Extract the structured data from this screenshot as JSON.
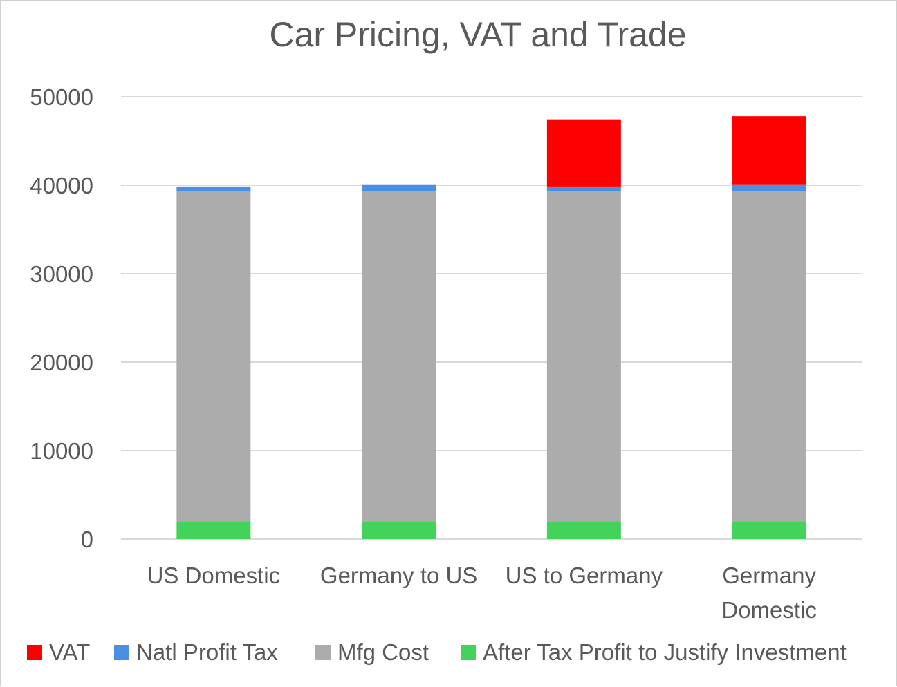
{
  "chart_data": {
    "type": "bar",
    "stacked": true,
    "title": "Car Pricing, VAT and Trade",
    "xlabel": "",
    "ylabel": "",
    "ylim": [
      0,
      50000
    ],
    "yticks": [
      "0",
      "10000",
      "20000",
      "30000",
      "40000",
      "50000"
    ],
    "grid": true,
    "legend_position": "bottom",
    "categories": [
      [
        "US Domestic"
      ],
      [
        "Germany to US"
      ],
      [
        "US to Germany"
      ],
      [
        "Germany",
        "Domestic"
      ]
    ],
    "series": [
      {
        "name": "After Tax Profit to Justify Investment",
        "color": "#44d35a",
        "values": [
          2000,
          2000,
          2000,
          2000
        ]
      },
      {
        "name": "Mfg Cost",
        "color": "#acacac",
        "values": [
          37300,
          37300,
          37300,
          37300
        ]
      },
      {
        "name": "Natl Profit Tax",
        "color": "#4a90e2",
        "values": [
          550,
          800,
          550,
          800
        ]
      },
      {
        "name": "VAT",
        "color": "#ff0000",
        "values": [
          0,
          0,
          7600,
          7700
        ]
      }
    ],
    "legend_order": [
      "VAT",
      "Natl Profit Tax",
      "Mfg Cost",
      "After Tax Profit to Justify Investment"
    ]
  }
}
